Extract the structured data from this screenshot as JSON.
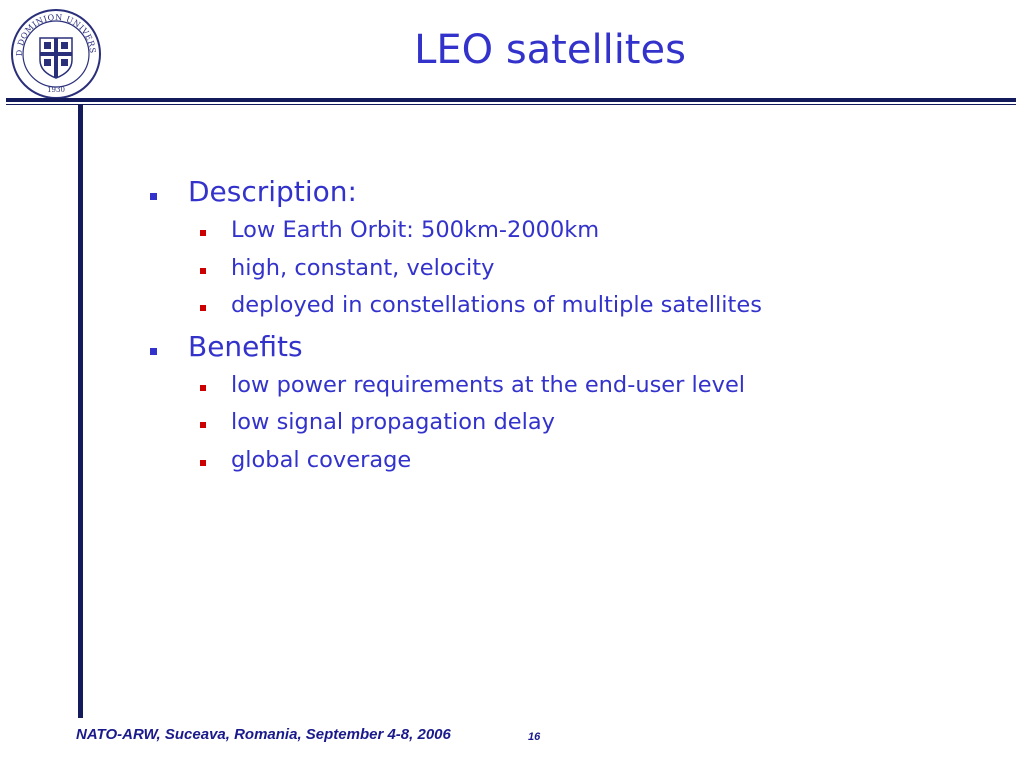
{
  "slide": {
    "title": "LEO satellites",
    "seal": {
      "ring_text": "OLD DOMINION UNIVERSITY",
      "year": "1930"
    },
    "bullets": [
      {
        "text": "Description:",
        "children": [
          "Low Earth Orbit: 500km-2000km",
          "high, constant, velocity",
          "deployed in constellations of multiple satellites"
        ]
      },
      {
        "text": "Benefits",
        "children": [
          "low power requirements at the end-user level",
          "low signal propagation delay",
          "global coverage"
        ]
      }
    ],
    "footer": "NATO-ARW, Suceava, Romania, September 4-8, 2006",
    "page_number": "16"
  },
  "colors": {
    "title": "#3333cc",
    "text": "#3333cc",
    "sub_bullet_marker": "#cc0000",
    "rules": "#141b5c",
    "footer": "#1a1a8c"
  }
}
